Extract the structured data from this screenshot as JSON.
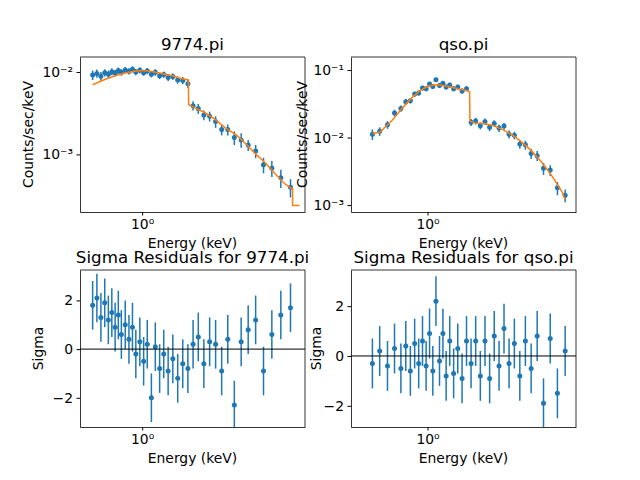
{
  "chart_data": [
    {
      "type": "scatter",
      "title": "9774.pi",
      "x_label": "Energy (keV)",
      "y_label": "Counts/sec/keV",
      "log": true,
      "xlim": [
        0.44,
        8.6
      ],
      "ylim": [
        0.0002,
        0.0152
      ],
      "xticks": [
        {
          "value": 1,
          "label": "10⁰"
        }
      ],
      "yticks": [
        {
          "value": 0.001,
          "label": "10⁻³"
        },
        {
          "value": 0.01,
          "label": "10⁻²"
        }
      ],
      "series": [
        {
          "type": "scatter",
          "color": "#1f77b4",
          "marker": "circle",
          "x": [
            0.52,
            0.55,
            0.58,
            0.61,
            0.64,
            0.67,
            0.7,
            0.73,
            0.76,
            0.8,
            0.84,
            0.88,
            0.92,
            0.97,
            1.02,
            1.07,
            1.13,
            1.19,
            1.26,
            1.33,
            1.41,
            1.5,
            1.6,
            1.71,
            1.83,
            1.96,
            2.1,
            2.26,
            2.44,
            2.64,
            2.86,
            3.1,
            3.38,
            3.7,
            4.06,
            4.48,
            4.97,
            5.55,
            6.25,
            7.1
          ],
          "values": [
            0.0092,
            0.0096,
            0.0089,
            0.0098,
            0.0094,
            0.0101,
            0.0097,
            0.0104,
            0.0099,
            0.0106,
            0.0102,
            0.0108,
            0.01,
            0.0105,
            0.0098,
            0.0103,
            0.0094,
            0.0099,
            0.009,
            0.0093,
            0.0086,
            0.0088,
            0.008,
            0.0079,
            0.0072,
            0.0039,
            0.0036,
            0.003,
            0.0029,
            0.0025,
            0.002,
            0.002,
            0.0016,
            0.0015,
            0.0013,
            0.0011,
            0.00075,
            0.00068,
            0.00052,
            0.0004
          ],
          "errors": [
            0.0012,
            0.0011,
            0.0011,
            0.001,
            0.001,
            0.001,
            0.0009,
            0.0009,
            0.0009,
            0.0009,
            0.0009,
            0.0009,
            0.0009,
            0.0009,
            0.0008,
            0.0009,
            0.0008,
            0.0009,
            0.0008,
            0.0008,
            0.0008,
            0.0008,
            0.0008,
            0.0008,
            0.0008,
            0.0005,
            0.0005,
            0.0004,
            0.0004,
            0.0004,
            0.0003,
            0.0003,
            0.0003,
            0.0003,
            0.0002,
            0.0002,
            0.00016,
            0.00015,
            0.00013,
            0.0001
          ]
        },
        {
          "type": "line",
          "color": "#ff7f0e",
          "line_style": "solid",
          "x": [
            0.52,
            0.6,
            0.7,
            0.8,
            0.9,
            1.0,
            1.1,
            1.2,
            1.35,
            1.5,
            1.65,
            1.84,
            1.85,
            2.0,
            2.3,
            2.6,
            3.0,
            3.5,
            4.0,
            4.5,
            5.0,
            5.5,
            6.0,
            6.5,
            7.0,
            7.3,
            7.3,
            8.0
          ],
          "values": [
            0.007,
            0.008,
            0.009,
            0.0097,
            0.0102,
            0.0104,
            0.0102,
            0.0099,
            0.0094,
            0.009,
            0.0084,
            0.008,
            0.004,
            0.0037,
            0.0032,
            0.0027,
            0.0021,
            0.0017,
            0.0013,
            0.001,
            0.00082,
            0.00066,
            0.00054,
            0.00045,
            0.0004,
            0.00038,
            0.00024,
            0.00024
          ]
        }
      ]
    },
    {
      "type": "scatter",
      "title": "qso.pi",
      "x_label": "Energy (keV)",
      "y_label": "Counts/sec/keV",
      "log": true,
      "xlim": [
        0.33,
        8.6
      ],
      "ylim": [
        0.00079,
        0.156
      ],
      "xticks": [
        {
          "value": 1,
          "label": "10⁰"
        }
      ],
      "yticks": [
        {
          "value": 0.001,
          "label": "10⁻³"
        },
        {
          "value": 0.01,
          "label": "10⁻²"
        },
        {
          "value": 0.1,
          "label": "10⁻¹"
        }
      ],
      "series": [
        {
          "type": "scatter",
          "color": "#1f77b4",
          "marker": "circle",
          "x": [
            0.45,
            0.5,
            0.56,
            0.62,
            0.68,
            0.73,
            0.78,
            0.83,
            0.88,
            0.93,
            0.98,
            1.03,
            1.08,
            1.13,
            1.19,
            1.25,
            1.31,
            1.38,
            1.46,
            1.55,
            1.65,
            1.76,
            1.88,
            2.01,
            2.15,
            2.3,
            2.46,
            2.63,
            2.82,
            3.03,
            3.26,
            3.52,
            3.81,
            4.13,
            4.49,
            4.9,
            5.37,
            5.92,
            6.57,
            7.35
          ],
          "values": [
            0.0112,
            0.0124,
            0.0155,
            0.0232,
            0.027,
            0.034,
            0.0352,
            0.044,
            0.0458,
            0.054,
            0.053,
            0.062,
            0.057,
            0.072,
            0.059,
            0.064,
            0.056,
            0.06,
            0.053,
            0.056,
            0.049,
            0.053,
            0.0168,
            0.0176,
            0.015,
            0.0172,
            0.0142,
            0.0162,
            0.0138,
            0.0148,
            0.0112,
            0.0108,
            0.008,
            0.0078,
            0.0058,
            0.0054,
            0.0035,
            0.0033,
            0.0018,
            0.0014
          ],
          "errors": [
            0.002,
            0.0018,
            0.002,
            0.0026,
            0.0028,
            0.0032,
            0.0033,
            0.0038,
            0.004,
            0.0044,
            0.0044,
            0.0048,
            0.0046,
            0.0052,
            0.0047,
            0.0049,
            0.0046,
            0.0048,
            0.0045,
            0.0046,
            0.0043,
            0.0045,
            0.002,
            0.002,
            0.0018,
            0.0019,
            0.0017,
            0.0018,
            0.0017,
            0.0017,
            0.0015,
            0.0014,
            0.0012,
            0.0012,
            0.001,
            0.0009,
            0.0007,
            0.0006,
            0.0004,
            0.0003
          ]
        },
        {
          "type": "line",
          "color": "#ff7f0e",
          "line_style": "solid",
          "x": [
            0.45,
            0.5,
            0.6,
            0.7,
            0.8,
            0.9,
            1.0,
            1.1,
            1.2,
            1.4,
            1.6,
            1.75,
            1.84,
            1.85,
            2.0,
            2.3,
            2.6,
            3.0,
            3.5,
            4.0,
            4.5,
            5.0,
            5.5,
            6.0,
            6.5,
            7.0,
            7.35
          ],
          "values": [
            0.0115,
            0.012,
            0.018,
            0.028,
            0.039,
            0.05,
            0.057,
            0.06,
            0.06,
            0.056,
            0.052,
            0.05,
            0.048,
            0.0175,
            0.0165,
            0.016,
            0.015,
            0.013,
            0.0105,
            0.0082,
            0.0064,
            0.0049,
            0.0037,
            0.0028,
            0.0021,
            0.0016,
            0.0012
          ]
        }
      ]
    },
    {
      "type": "scatter",
      "title": "Sigma Residuals for 9774.pi",
      "x_label": "Energy (keV)",
      "y_label": "Sigma",
      "log": "x",
      "xlim": [
        0.44,
        8.6
      ],
      "ylim": [
        -3.2,
        3.25
      ],
      "xticks": [
        {
          "value": 1,
          "label": "10⁰"
        }
      ],
      "yticks": [
        {
          "value": -2,
          "label": "−2"
        },
        0,
        2
      ],
      "series": [
        {
          "type": "scatter",
          "color": "#1f77b4",
          "marker": "circle",
          "x": [
            0.52,
            0.55,
            0.58,
            0.61,
            0.64,
            0.67,
            0.7,
            0.73,
            0.76,
            0.8,
            0.84,
            0.88,
            0.92,
            0.97,
            1.02,
            1.07,
            1.13,
            1.19,
            1.26,
            1.33,
            1.41,
            1.5,
            1.6,
            1.71,
            1.83,
            1.96,
            2.1,
            2.26,
            2.44,
            2.64,
            2.86,
            3.1,
            3.38,
            3.7,
            4.06,
            4.48,
            4.97,
            5.55,
            6.25,
            7.1
          ],
          "values": [
            1.8,
            2.1,
            1.3,
            1.9,
            1.2,
            1.5,
            0.9,
            1.4,
            0.6,
            1.0,
            0.4,
            0.9,
            -0.2,
            0.3,
            -0.5,
            0.2,
            -2.0,
            0.1,
            -0.8,
            -0.2,
            -0.9,
            -0.4,
            -1.2,
            -0.6,
            -0.8,
            0.2,
            0.5,
            -0.6,
            0.3,
            0.2,
            -0.9,
            0.4,
            -2.3,
            0.3,
            0.8,
            1.2,
            -0.9,
            0.6,
            1.4,
            1.7
          ],
          "errors": [
            1,
            1,
            1,
            1,
            1,
            1,
            1,
            1,
            1,
            1,
            1,
            1,
            1,
            1,
            1,
            1,
            1,
            1,
            1,
            1,
            1,
            1,
            1,
            1,
            1,
            1,
            1,
            1,
            1,
            1,
            1,
            1,
            1,
            1,
            1,
            1,
            1,
            1,
            1,
            1
          ]
        },
        {
          "type": "line",
          "color": "#000000",
          "line_style": "solid",
          "x": [
            0.44,
            8.6
          ],
          "values": [
            0,
            0
          ]
        }
      ]
    },
    {
      "type": "scatter",
      "title": "Sigma Residuals for qso.pi",
      "x_label": "Energy (keV)",
      "y_label": "Sigma",
      "log": "x",
      "xlim": [
        0.33,
        8.6
      ],
      "ylim": [
        -2.85,
        3.45
      ],
      "xticks": [
        {
          "value": 1,
          "label": "10⁰"
        }
      ],
      "yticks": [
        {
          "value": -2,
          "label": "−2"
        },
        0,
        2
      ],
      "series": [
        {
          "type": "scatter",
          "color": "#1f77b4",
          "marker": "circle",
          "x": [
            0.45,
            0.5,
            0.56,
            0.62,
            0.68,
            0.73,
            0.78,
            0.83,
            0.88,
            0.93,
            0.98,
            1.03,
            1.08,
            1.13,
            1.19,
            1.25,
            1.31,
            1.38,
            1.46,
            1.55,
            1.65,
            1.76,
            1.88,
            2.01,
            2.15,
            2.3,
            2.46,
            2.63,
            2.82,
            3.03,
            3.26,
            3.52,
            3.81,
            4.13,
            4.49,
            4.9,
            5.37,
            5.92,
            6.57,
            7.35
          ],
          "values": [
            -0.3,
            0.2,
            -0.4,
            0.3,
            -0.5,
            0.4,
            -0.6,
            0.5,
            -0.3,
            0.6,
            -0.4,
            0.9,
            -0.6,
            2.2,
            -0.2,
            0.9,
            -0.8,
            0.6,
            -0.7,
            0.3,
            -0.9,
            0.6,
            -0.3,
            0.6,
            -0.8,
            0.6,
            -0.9,
            0.8,
            -0.4,
            1.1,
            -0.3,
            0.5,
            -0.8,
            0.6,
            -0.5,
            0.8,
            -1.9,
            0.7,
            -1.5,
            0.2
          ],
          "errors": [
            1,
            1,
            1,
            1,
            1,
            1,
            1,
            1,
            1,
            1,
            1,
            1,
            1,
            1,
            1,
            1,
            1,
            1,
            1,
            1,
            1,
            1,
            1,
            1,
            1,
            1,
            1,
            1,
            1,
            1,
            1,
            1,
            1,
            1,
            1,
            1,
            1,
            1,
            1,
            1
          ]
        },
        {
          "type": "line",
          "color": "#000000",
          "line_style": "solid",
          "x": [
            0.33,
            8.6
          ],
          "values": [
            0,
            0
          ]
        }
      ]
    }
  ]
}
